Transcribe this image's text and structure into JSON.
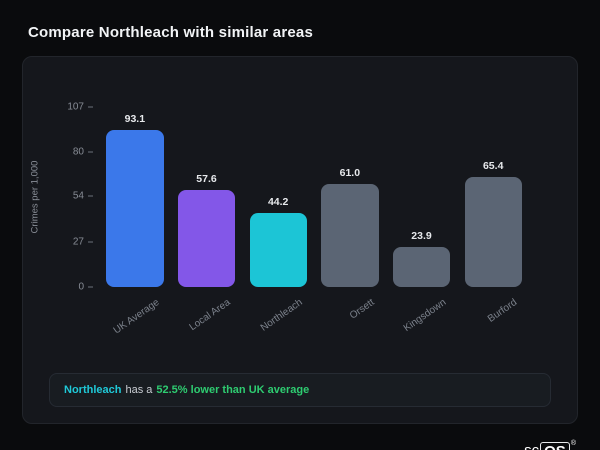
{
  "page": {
    "title": "Compare Northleach with similar areas"
  },
  "chart_data": {
    "type": "bar",
    "title": "",
    "xlabel": "",
    "ylabel": "Crimes per 1,000",
    "ylim": [
      0,
      107
    ],
    "yticks": [
      107,
      80,
      54,
      27,
      0
    ],
    "grid": false,
    "legend": false,
    "categories": [
      "UK Average",
      "Local Area",
      "Northleach",
      "Orsett",
      "Kingsdown",
      "Burford"
    ],
    "values": [
      93.1,
      57.6,
      44.2,
      61.0,
      23.9,
      65.4
    ],
    "value_labels": [
      "93.1",
      "57.6",
      "44.2",
      "61.0",
      "23.9",
      "65.4"
    ],
    "bar_colors": [
      "#3b78ea",
      "#8357e8",
      "#1cc5d6",
      "#5b6574",
      "#5b6574",
      "#5b6574"
    ]
  },
  "note": {
    "area": "Northleach",
    "middle": "has a",
    "stat": "52.5% lower than UK average",
    "area_color": "#1fc9d8",
    "stat_color": "#2ecc71"
  },
  "logo": {
    "prefix": "sc",
    "boxed": "OS",
    "registered": "®"
  }
}
